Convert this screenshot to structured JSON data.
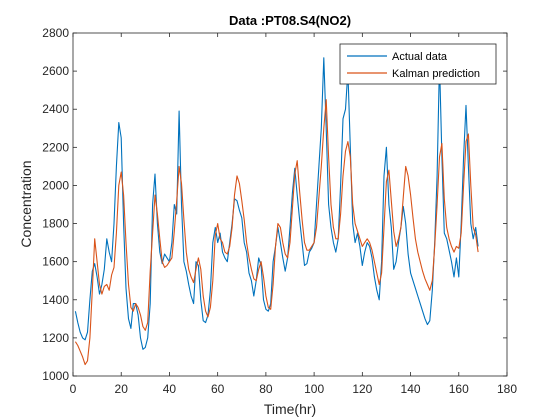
{
  "chart_data": {
    "type": "line",
    "title": "Data :PT08.S4(NO2)",
    "xlabel": "Time(hr)",
    "ylabel": "Concentration",
    "xlim": [
      0,
      180
    ],
    "ylim": [
      1000,
      2800
    ],
    "xticks": [
      0,
      20,
      40,
      60,
      80,
      100,
      120,
      140,
      160,
      180
    ],
    "yticks": [
      1000,
      1200,
      1400,
      1600,
      1800,
      2000,
      2200,
      2400,
      2600,
      2800
    ],
    "grid": false,
    "legend_position": "top-right",
    "x": [
      1,
      2,
      3,
      4,
      5,
      6,
      7,
      8,
      9,
      10,
      11,
      12,
      13,
      14,
      15,
      16,
      17,
      18,
      19,
      20,
      21,
      22,
      23,
      24,
      25,
      26,
      27,
      28,
      29,
      30,
      31,
      32,
      33,
      34,
      35,
      36,
      37,
      38,
      39,
      40,
      41,
      42,
      43,
      44,
      45,
      46,
      47,
      48,
      49,
      50,
      51,
      52,
      53,
      54,
      55,
      56,
      57,
      58,
      59,
      60,
      61,
      62,
      63,
      64,
      65,
      66,
      67,
      68,
      69,
      70,
      71,
      72,
      73,
      74,
      75,
      76,
      77,
      78,
      79,
      80,
      81,
      82,
      83,
      84,
      85,
      86,
      87,
      88,
      89,
      90,
      91,
      92,
      93,
      94,
      95,
      96,
      97,
      98,
      99,
      100,
      101,
      102,
      103,
      104,
      105,
      106,
      107,
      108,
      109,
      110,
      111,
      112,
      113,
      114,
      115,
      116,
      117,
      118,
      119,
      120,
      121,
      122,
      123,
      124,
      125,
      126,
      127,
      128,
      129,
      130,
      131,
      132,
      133,
      134,
      135,
      136,
      137,
      138,
      139,
      140,
      141,
      142,
      143,
      144,
      145,
      146,
      147,
      148,
      149,
      150,
      151,
      152,
      153,
      154,
      155,
      156,
      157,
      158,
      159,
      160,
      161,
      162,
      163,
      164,
      165,
      166,
      167,
      168
    ],
    "series": [
      {
        "name": "Actual data",
        "color": "#0072BD",
        "values": [
          1340,
          1280,
          1230,
          1200,
          1190,
          1230,
          1400,
          1550,
          1590,
          1520,
          1430,
          1480,
          1560,
          1720,
          1650,
          1600,
          1800,
          2100,
          2330,
          2250,
          1800,
          1460,
          1300,
          1250,
          1380,
          1380,
          1320,
          1200,
          1140,
          1150,
          1200,
          1380,
          1900,
          2060,
          1800,
          1650,
          1590,
          1640,
          1620,
          1600,
          1700,
          1900,
          1850,
          2390,
          1900,
          1600,
          1550,
          1480,
          1420,
          1380,
          1600,
          1580,
          1400,
          1290,
          1280,
          1320,
          1450,
          1700,
          1780,
          1700,
          1750,
          1650,
          1620,
          1600,
          1700,
          1800,
          1930,
          1920,
          1870,
          1830,
          1700,
          1650,
          1540,
          1500,
          1420,
          1500,
          1620,
          1580,
          1400,
          1350,
          1340,
          1380,
          1600,
          1680,
          1780,
          1700,
          1620,
          1550,
          1620,
          1780,
          1960,
          2090,
          1950,
          1820,
          1700,
          1580,
          1590,
          1650,
          1670,
          1700,
          1900,
          2100,
          2300,
          2670,
          2300,
          1900,
          1780,
          1700,
          1650,
          1720,
          2000,
          2350,
          2400,
          2600,
          2200,
          1800,
          1700,
          1750,
          1680,
          1580,
          1650,
          1700,
          1680,
          1620,
          1520,
          1450,
          1400,
          1600,
          2050,
          2200,
          1900,
          1780,
          1560,
          1600,
          1700,
          1780,
          1890,
          1800,
          1640,
          1540,
          1500,
          1460,
          1420,
          1380,
          1340,
          1300,
          1270,
          1290,
          1450,
          1700,
          2050,
          2650,
          2150,
          1750,
          1720,
          1660,
          1600,
          1520,
          1620,
          1520,
          1800,
          2150,
          2420,
          2100,
          1800,
          1720,
          1780,
          1680
        ]
      },
      {
        "name": "Kalman prediction",
        "color": "#D95319",
        "values": [
          1180,
          1160,
          1130,
          1100,
          1060,
          1080,
          1200,
          1450,
          1720,
          1600,
          1480,
          1430,
          1470,
          1480,
          1450,
          1530,
          1570,
          1750,
          2000,
          2070,
          1950,
          1700,
          1480,
          1360,
          1340,
          1380,
          1360,
          1320,
          1260,
          1240,
          1280,
          1550,
          1750,
          1950,
          1850,
          1720,
          1600,
          1570,
          1580,
          1600,
          1620,
          1760,
          1920,
          2100,
          2010,
          1820,
          1650,
          1560,
          1520,
          1490,
          1560,
          1620,
          1560,
          1420,
          1340,
          1310,
          1360,
          1500,
          1740,
          1800,
          1720,
          1700,
          1650,
          1640,
          1680,
          1780,
          1950,
          2050,
          2010,
          1920,
          1820,
          1700,
          1620,
          1560,
          1510,
          1500,
          1560,
          1600,
          1520,
          1420,
          1360,
          1350,
          1480,
          1680,
          1800,
          1780,
          1700,
          1640,
          1620,
          1700,
          1880,
          2060,
          2130,
          1970,
          1820,
          1700,
          1660,
          1660,
          1680,
          1700,
          1780,
          1940,
          2100,
          2300,
          2450,
          2150,
          1900,
          1780,
          1720,
          1720,
          1850,
          2050,
          2180,
          2230,
          2150,
          1900,
          1800,
          1760,
          1720,
          1680,
          1700,
          1720,
          1700,
          1660,
          1600,
          1540,
          1480,
          1540,
          1780,
          2020,
          2080,
          1920,
          1760,
          1680,
          1720,
          1780,
          1940,
          2100,
          2050,
          1950,
          1830,
          1720,
          1650,
          1600,
          1550,
          1510,
          1480,
          1450,
          1500,
          1680,
          1900,
          2150,
          2220,
          1930,
          1780,
          1720,
          1680,
          1650,
          1680,
          1670,
          1750,
          2000,
          2230,
          2270,
          2000,
          1780,
          1740,
          1650
        ]
      }
    ]
  }
}
